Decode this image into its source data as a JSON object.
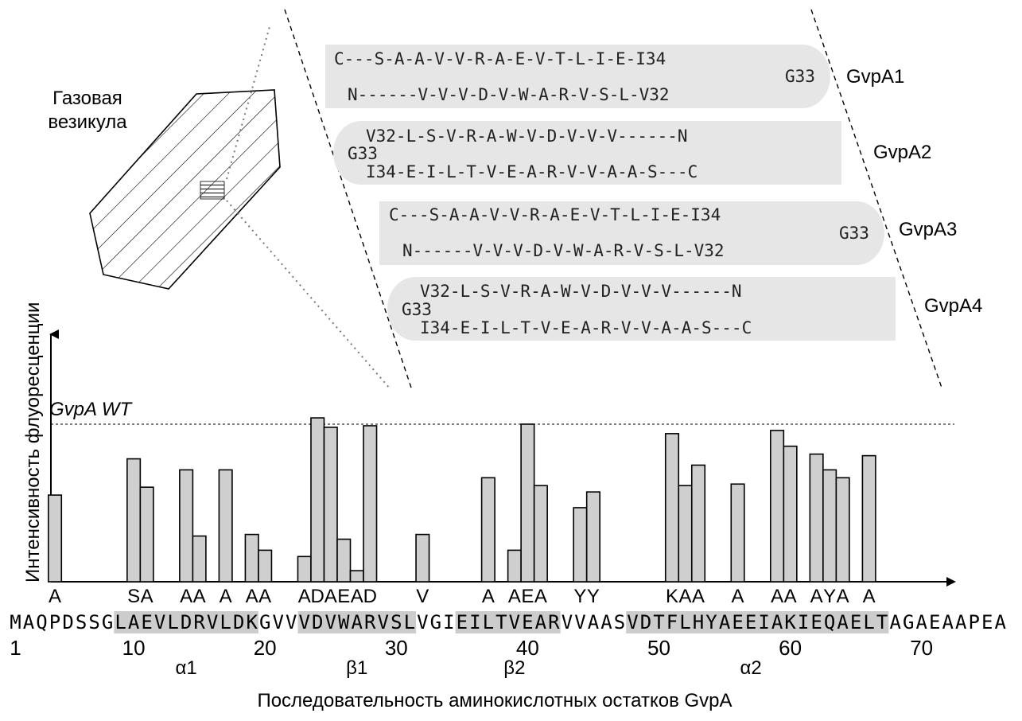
{
  "vesicle_label": [
    "Газовая",
    "везикула"
  ],
  "monomers": [
    {
      "name": "GvpA1",
      "orientation": "right",
      "top": "C---S-A-A-V-V-R-A-E-V-T-L-I-E-I34",
      "turn": "G33",
      "bottom": "N------V-V-V-D-V-W-A-R-V-S-L-V32"
    },
    {
      "name": "GvpA2",
      "orientation": "left",
      "top": "V32-L-S-V-R-A-W-V-D-V-V-V------N",
      "turn": "G33",
      "bottom": "I34-E-I-L-T-V-E-A-R-V-V-A-A-S---C"
    },
    {
      "name": "GvpA3",
      "orientation": "right",
      "top": "C---S-A-A-V-V-R-A-E-V-T-L-I-E-I34",
      "turn": "G33",
      "bottom": "N------V-V-V-D-V-W-A-R-V-S-L-V32"
    },
    {
      "name": "GvpA4",
      "orientation": "left",
      "top": "V32-L-S-V-R-A-W-V-D-V-V-V------N",
      "turn": "G33",
      "bottom": "I34-E-I-L-T-V-E-A-R-V-V-A-A-S---C"
    }
  ],
  "chart_data": {
    "type": "bar",
    "ylabel": "Интенсивность флуоресценции",
    "xlabel": "Последовательность аминокислотных остатков GvpA",
    "reference_line": {
      "label": "GvpA WT",
      "value": 1.0
    },
    "sequence": "MAQPDSSGLAEVLDRVLDKGVVVDVWARVSLVGIEILTVEARVVAASVDTFLHYAEEIAKIEQAELTAGAEAAPEA",
    "highlighted_ranges": [
      [
        9,
        19
      ],
      [
        23,
        31
      ],
      [
        35,
        42
      ],
      [
        48,
        67
      ]
    ],
    "secondary_structure": [
      {
        "label": "α1",
        "position": 14
      },
      {
        "label": "β1",
        "position": 27
      },
      {
        "label": "β2",
        "position": 39
      },
      {
        "label": "α2",
        "position": 57
      }
    ],
    "x_ticks": [
      1,
      10,
      20,
      30,
      40,
      50,
      60,
      70
    ],
    "bars": [
      {
        "position": 4,
        "mutation": "A",
        "value": 0.55
      },
      {
        "position": 10,
        "mutation": "S",
        "value": 0.78
      },
      {
        "position": 11,
        "mutation": "A",
        "value": 0.6
      },
      {
        "position": 14,
        "mutation": "A",
        "value": 0.71
      },
      {
        "position": 15,
        "mutation": "A",
        "value": 0.29
      },
      {
        "position": 17,
        "mutation": "A",
        "value": 0.71
      },
      {
        "position": 19,
        "mutation": "A",
        "value": 0.3
      },
      {
        "position": 20,
        "mutation": "A",
        "value": 0.2
      },
      {
        "position": 23,
        "mutation": "A",
        "value": 0.16
      },
      {
        "position": 24,
        "mutation": "D",
        "value": 1.04
      },
      {
        "position": 25,
        "mutation": "A",
        "value": 0.98
      },
      {
        "position": 26,
        "mutation": "E",
        "value": 0.27
      },
      {
        "position": 27,
        "mutation": "A",
        "value": 0.07
      },
      {
        "position": 28,
        "mutation": "D",
        "value": 0.99
      },
      {
        "position": 32,
        "mutation": "V",
        "value": 0.3
      },
      {
        "position": 37,
        "mutation": "A",
        "value": 0.66
      },
      {
        "position": 39,
        "mutation": "A",
        "value": 0.2
      },
      {
        "position": 40,
        "mutation": "E",
        "value": 1.0
      },
      {
        "position": 41,
        "mutation": "A",
        "value": 0.61
      },
      {
        "position": 44,
        "mutation": "Y",
        "value": 0.47
      },
      {
        "position": 45,
        "mutation": "Y",
        "value": 0.57
      },
      {
        "position": 51,
        "mutation": "K",
        "value": 0.94
      },
      {
        "position": 52,
        "mutation": "A",
        "value": 0.61
      },
      {
        "position": 53,
        "mutation": "A",
        "value": 0.74
      },
      {
        "position": 56,
        "mutation": "A",
        "value": 0.62
      },
      {
        "position": 59,
        "mutation": "A",
        "value": 0.96
      },
      {
        "position": 60,
        "mutation": "A",
        "value": 0.86
      },
      {
        "position": 62,
        "mutation": "A",
        "value": 0.81
      },
      {
        "position": 63,
        "mutation": "Y",
        "value": 0.71
      },
      {
        "position": 64,
        "mutation": "A",
        "value": 0.66
      },
      {
        "position": 66,
        "mutation": "A",
        "value": 0.8
      }
    ],
    "ylim": [
      0,
      1.1
    ],
    "grid": false
  }
}
